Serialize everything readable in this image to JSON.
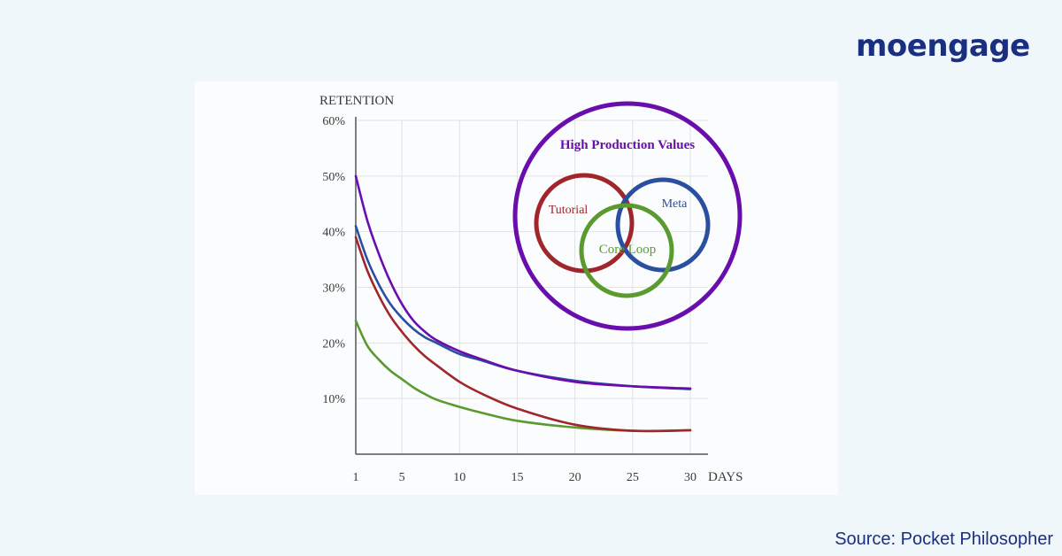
{
  "brand": {
    "name": "moengage",
    "color": "#1b2f80"
  },
  "source_text": "Source: Pocket Philosopher",
  "colors": {
    "background": "#f0f7fb",
    "source_text": "#1b2f80"
  },
  "chart_data": {
    "type": "line",
    "title": "",
    "ylabel": "RETENTION",
    "xlabel": "DAYS",
    "x_ticks": [
      "1",
      "5",
      "10",
      "15",
      "20",
      "25",
      "30"
    ],
    "y_ticks": [
      "10%",
      "20%",
      "30%",
      "40%",
      "50%",
      "60%"
    ],
    "xlim": [
      1,
      30
    ],
    "ylim": [
      0,
      60
    ],
    "grid": true,
    "x": [
      1,
      2,
      3,
      4,
      5,
      6,
      7,
      8,
      10,
      12,
      15,
      20,
      25,
      30
    ],
    "series": [
      {
        "name": "High Production Values",
        "color": "#6a0dad",
        "values": [
          50,
          42,
          36,
          31,
          27,
          24,
          22,
          20.5,
          18.5,
          17,
          15,
          13,
          12.2,
          11.8
        ]
      },
      {
        "name": "Meta",
        "color": "#2a4fa0",
        "values": [
          41,
          35,
          30.5,
          27,
          24.5,
          22.5,
          21,
          20,
          18,
          16.8,
          15,
          13.2,
          12.2,
          11.7
        ]
      },
      {
        "name": "Tutorial",
        "color": "#a0262c",
        "values": [
          39,
          33,
          28.5,
          24.8,
          22,
          19.6,
          17.6,
          16,
          13,
          10.8,
          8.2,
          5.3,
          4.2,
          4.3
        ]
      },
      {
        "name": "Core Loop",
        "color": "#5a9a2e",
        "values": [
          24,
          19.5,
          17,
          15,
          13.5,
          12,
          10.8,
          9.8,
          8.5,
          7.4,
          6,
          4.8,
          4.2,
          4.3
        ]
      }
    ],
    "venn": {
      "outer_label": "High Production Values",
      "tutorial_label": "Tutorial",
      "meta_label": "Meta",
      "core_label": "Core Loop"
    }
  }
}
